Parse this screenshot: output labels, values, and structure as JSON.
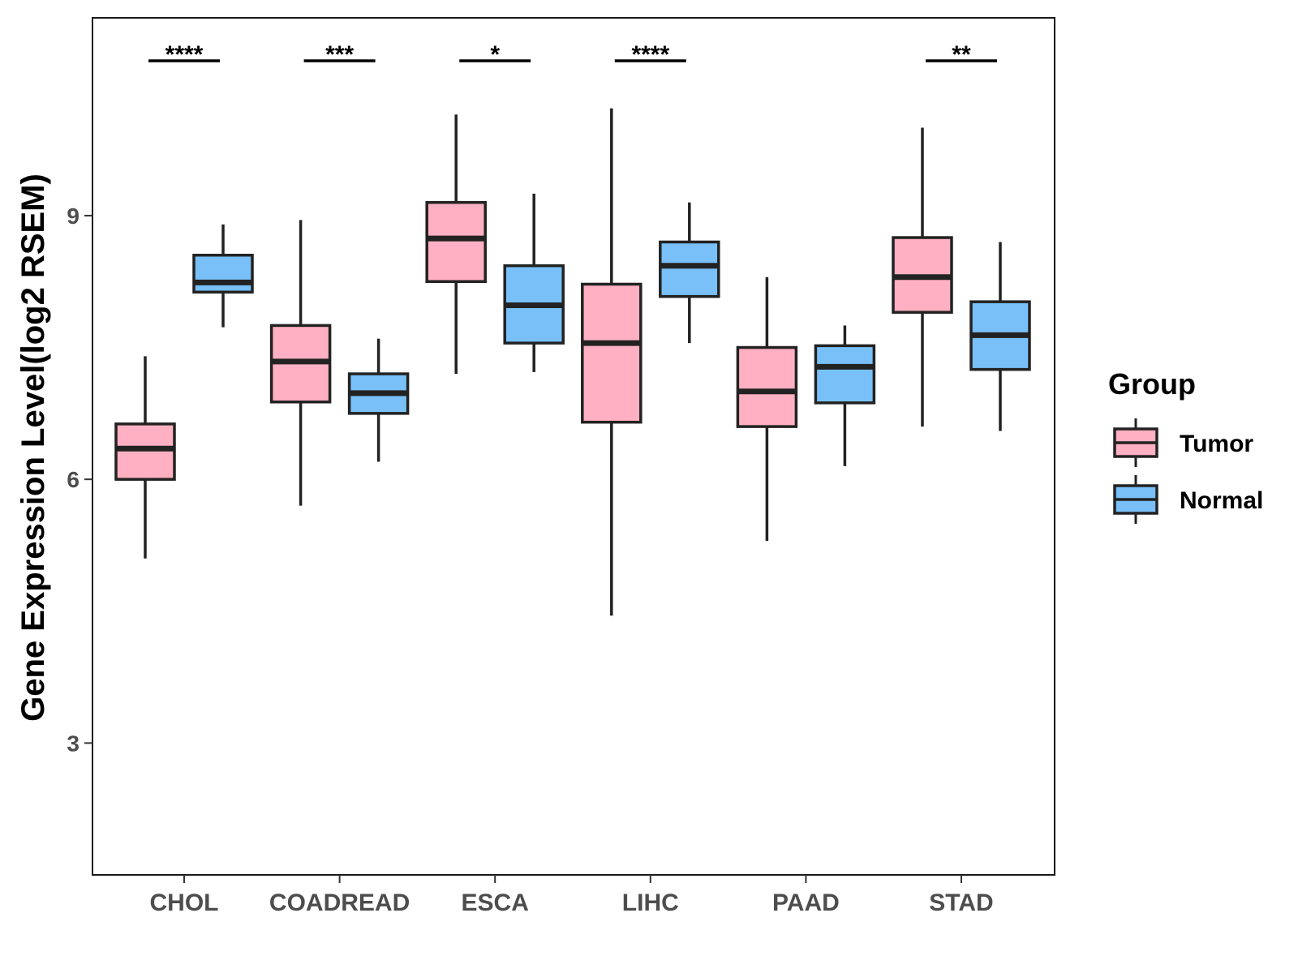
{
  "chart_data": {
    "type": "boxplot",
    "title": "",
    "xlabel": "",
    "ylabel": "Gene Expression Level(log2 RSEM)",
    "ylim": [
      1.5,
      11.25
    ],
    "yticks": [
      3,
      6,
      9
    ],
    "grid": false,
    "legend": {
      "title": "Group",
      "position": "right"
    },
    "categories": [
      "CHOL",
      "COADREAD",
      "ESCA",
      "LIHC",
      "PAAD",
      "STAD"
    ],
    "series": [
      {
        "name": "Tumor",
        "color": "#ffb0c2",
        "boxes": [
          {
            "min": 5.1,
            "q1": 6.0,
            "median": 6.35,
            "q3": 6.63,
            "max": 7.4
          },
          {
            "min": 5.7,
            "q1": 6.88,
            "median": 7.34,
            "q3": 7.75,
            "max": 8.95
          },
          {
            "min": 7.2,
            "q1": 8.25,
            "median": 8.74,
            "q3": 9.15,
            "max": 10.15
          },
          {
            "min": 4.45,
            "q1": 6.65,
            "median": 7.55,
            "q3": 8.22,
            "max": 10.22
          },
          {
            "min": 5.3,
            "q1": 6.6,
            "median": 7.0,
            "q3": 7.5,
            "max": 8.3
          },
          {
            "min": 6.6,
            "q1": 7.9,
            "median": 8.3,
            "q3": 8.75,
            "max": 10.0
          }
        ]
      },
      {
        "name": "Normal",
        "color": "#78c0f7",
        "boxes": [
          {
            "min": 7.73,
            "q1": 8.13,
            "median": 8.24,
            "q3": 8.55,
            "max": 8.9
          },
          {
            "min": 6.2,
            "q1": 6.75,
            "median": 6.98,
            "q3": 7.2,
            "max": 7.6
          },
          {
            "min": 7.22,
            "q1": 7.55,
            "median": 7.98,
            "q3": 8.43,
            "max": 9.25
          },
          {
            "min": 7.55,
            "q1": 8.08,
            "median": 8.43,
            "q3": 8.7,
            "max": 9.15
          },
          {
            "min": 6.15,
            "q1": 6.87,
            "median": 7.28,
            "q3": 7.52,
            "max": 7.75
          },
          {
            "min": 6.55,
            "q1": 7.25,
            "median": 7.64,
            "q3": 8.02,
            "max": 8.7
          }
        ]
      }
    ],
    "significance": [
      {
        "category": "CHOL",
        "label": "****"
      },
      {
        "category": "COADREAD",
        "label": "***"
      },
      {
        "category": "ESCA",
        "label": "*"
      },
      {
        "category": "LIHC",
        "label": "****"
      },
      {
        "category": "PAAD",
        "label": ""
      },
      {
        "category": "STAD",
        "label": "**"
      }
    ]
  }
}
